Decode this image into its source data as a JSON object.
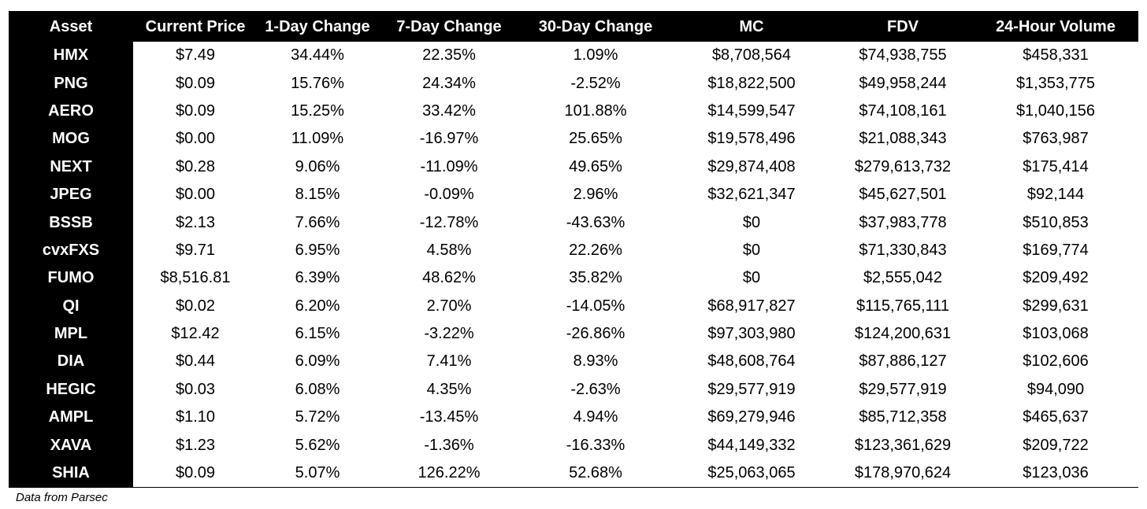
{
  "table": {
    "columns": [
      "Asset",
      "Current Price",
      "1-Day Change",
      "7-Day Change",
      "30-Day Change",
      "MC",
      "FDV",
      "24-Hour Volume"
    ],
    "rows": [
      [
        "HMX",
        "$7.49",
        "34.44%",
        "22.35%",
        "1.09%",
        "$8,708,564",
        "$74,938,755",
        "$458,331"
      ],
      [
        "PNG",
        "$0.09",
        "15.76%",
        "24.34%",
        "-2.52%",
        "$18,822,500",
        "$49,958,244",
        "$1,353,775"
      ],
      [
        "AERO",
        "$0.09",
        "15.25%",
        "33.42%",
        "101.88%",
        "$14,599,547",
        "$74,108,161",
        "$1,040,156"
      ],
      [
        "MOG",
        "$0.00",
        "11.09%",
        "-16.97%",
        "25.65%",
        "$19,578,496",
        "$21,088,343",
        "$763,987"
      ],
      [
        "NEXT",
        "$0.28",
        "9.06%",
        "-11.09%",
        "49.65%",
        "$29,874,408",
        "$279,613,732",
        "$175,414"
      ],
      [
        "JPEG",
        "$0.00",
        "8.15%",
        "-0.09%",
        "2.96%",
        "$32,621,347",
        "$45,627,501",
        "$92,144"
      ],
      [
        "BSSB",
        "$2.13",
        "7.66%",
        "-12.78%",
        "-43.63%",
        "$0",
        "$37,983,778",
        "$510,853"
      ],
      [
        "cvxFXS",
        "$9.71",
        "6.95%",
        "4.58%",
        "22.26%",
        "$0",
        "$71,330,843",
        "$169,774"
      ],
      [
        "FUMO",
        "$8,516.81",
        "6.39%",
        "48.62%",
        "35.82%",
        "$0",
        "$2,555,042",
        "$209,492"
      ],
      [
        "QI",
        "$0.02",
        "6.20%",
        "2.70%",
        "-14.05%",
        "$68,917,827",
        "$115,765,111",
        "$299,631"
      ],
      [
        "MPL",
        "$12.42",
        "6.15%",
        "-3.22%",
        "-26.86%",
        "$97,303,980",
        "$124,200,631",
        "$103,068"
      ],
      [
        "DIA",
        "$0.44",
        "6.09%",
        "7.41%",
        "8.93%",
        "$48,608,764",
        "$87,886,127",
        "$102,606"
      ],
      [
        "HEGIC",
        "$0.03",
        "6.08%",
        "4.35%",
        "-2.63%",
        "$29,577,919",
        "$29,577,919",
        "$94,090"
      ],
      [
        "AMPL",
        "$1.10",
        "5.72%",
        "-13.45%",
        "4.94%",
        "$69,279,946",
        "$85,712,358",
        "$465,637"
      ],
      [
        "XAVA",
        "$1.23",
        "5.62%",
        "-1.36%",
        "-16.33%",
        "$44,149,332",
        "$123,361,629",
        "$209,722"
      ],
      [
        "SHIA",
        "$0.09",
        "5.07%",
        "126.22%",
        "52.68%",
        "$25,063,065",
        "$178,970,624",
        "$123,036"
      ]
    ]
  },
  "caption": "Data from Parsec",
  "colors": {
    "header_background": "#000000",
    "header_text": "#ffffff",
    "cell_background": "#ffffff",
    "cell_text": "#000000"
  }
}
